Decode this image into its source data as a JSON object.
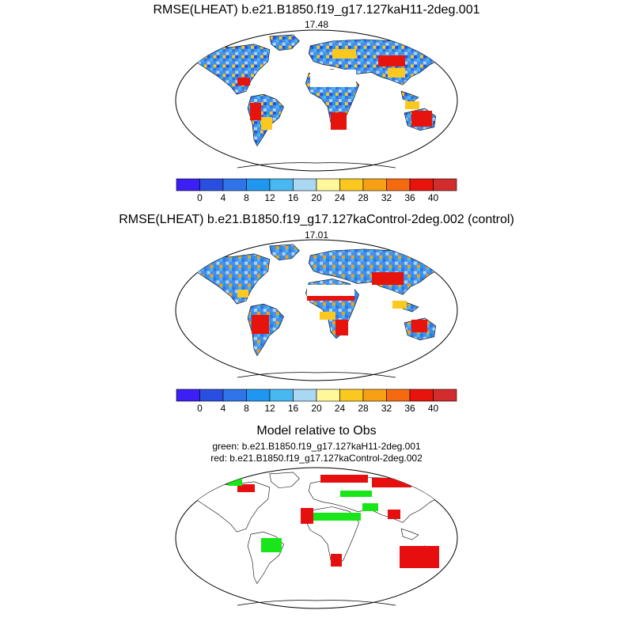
{
  "panel1": {
    "title": "RMSE(LHEAT) b.e21.B1850.f19_g17.127kaH11-2deg.001",
    "value": "17.48"
  },
  "panel2": {
    "title": "RMSE(LHEAT) b.e21.B1850.f19_g17.127kaControl-2deg.002 (control)",
    "value": "17.01"
  },
  "panel3": {
    "title": "Model relative to Obs",
    "line1": "green: b.e21.B1850.f19_g17.127kaH11-2deg.001",
    "line2": "red: b.e21.B1850.f19_g17.127kaControl-2deg.002"
  },
  "colorbar": {
    "colors": [
      "#3b1ff5",
      "#2a4fe0",
      "#2f74e8",
      "#1f97f0",
      "#47b8f0",
      "#aad7f2",
      "#fff79a",
      "#fac81e",
      "#f7a016",
      "#f56a10",
      "#e6140c",
      "#d32c2c"
    ],
    "tick_labels": [
      "0",
      "4",
      "8",
      "12",
      "16",
      "20",
      "24",
      "28",
      "32",
      "36",
      "40"
    ]
  },
  "legend_colors": {
    "green": "#19e619",
    "red": "#e60e0e"
  }
}
